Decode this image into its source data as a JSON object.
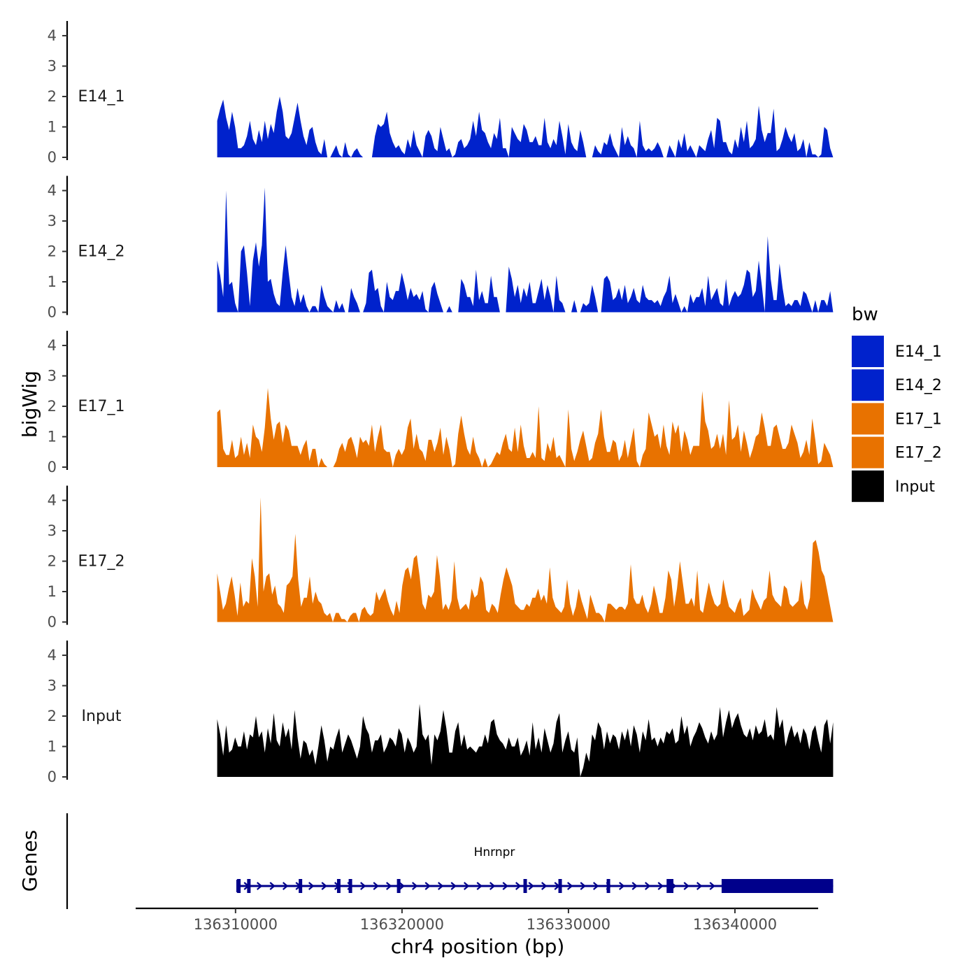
{
  "chart_data": {
    "type": "area",
    "title": "",
    "ylabel": "bigWig",
    "xlabel": "chr4 position (bp)",
    "xlim": [
      136304000,
      136345000
    ],
    "ylim": [
      0,
      4.3
    ],
    "yticks": [
      0,
      1,
      2,
      3,
      4
    ],
    "xticks": [
      136310000,
      136320000,
      136330000,
      136340000
    ],
    "xtick_labels": [
      "136310000",
      "136320000",
      "136330000",
      "136340000"
    ],
    "region_start": 136308900,
    "region_end": 136345900,
    "bin_count": 200,
    "legend_title": "bw",
    "tracks": [
      {
        "name": "E14_1",
        "color": "#0022CC",
        "values": [
          1.2,
          1.6,
          1.9,
          1.3,
          0.9,
          1.5,
          1.0,
          0.3,
          0.3,
          0.4,
          0.7,
          1.2,
          0.6,
          0.4,
          0.9,
          0.5,
          1.2,
          0.6,
          1.1,
          0.8,
          1.5,
          2.0,
          1.5,
          0.7,
          0.6,
          0.8,
          1.3,
          1.8,
          1.2,
          0.7,
          0.4,
          0.9,
          1.0,
          0.5,
          0.2,
          0.1,
          0.6,
          0.0,
          0.0,
          0.2,
          0.4,
          0.1,
          0.0,
          0.5,
          0.1,
          0.0,
          0.2,
          0.3,
          0.1,
          0.0,
          0.0,
          0.0,
          0.0,
          0.7,
          1.1,
          1.0,
          1.1,
          1.5,
          0.8,
          0.5,
          0.3,
          0.4,
          0.2,
          0.1,
          0.6,
          0.3,
          0.9,
          0.4,
          0.2,
          0.0,
          0.7,
          0.9,
          0.7,
          0.3,
          0.2,
          1.0,
          0.6,
          0.2,
          0.3,
          0.0,
          0.1,
          0.5,
          0.6,
          0.3,
          0.4,
          0.6,
          1.2,
          0.7,
          1.5,
          0.9,
          0.8,
          0.5,
          0.3,
          0.8,
          0.6,
          1.3,
          0.3,
          0.3,
          0.0,
          1.0,
          0.8,
          0.6,
          0.5,
          1.1,
          0.9,
          0.5,
          0.5,
          0.7,
          0.4,
          0.4,
          1.3,
          0.5,
          0.3,
          0.6,
          0.4,
          1.2,
          0.7,
          0.1,
          1.1,
          0.5,
          0.3,
          0.2,
          0.9,
          0.5,
          0.0,
          0.0,
          0.0,
          0.4,
          0.2,
          0.1,
          0.5,
          0.4,
          0.8,
          0.4,
          0.2,
          0.0,
          1.0,
          0.4,
          0.7,
          0.4,
          0.3,
          0.0,
          1.2,
          0.4,
          0.2,
          0.3,
          0.2,
          0.3,
          0.5,
          0.3,
          0.0,
          0.0,
          0.4,
          0.2,
          0.0,
          0.6,
          0.3,
          0.8,
          0.2,
          0.4,
          0.2,
          0.0,
          0.4,
          0.3,
          0.2,
          0.6,
          0.9,
          0.3,
          1.3,
          1.2,
          0.5,
          0.5,
          0.2,
          0.1,
          0.6,
          0.3,
          1.0,
          0.5,
          1.2,
          0.3,
          0.4,
          0.6,
          1.7,
          0.9,
          0.5,
          0.8,
          0.8,
          1.6,
          0.2,
          0.3,
          0.6,
          1.0,
          0.7,
          0.5,
          0.8,
          0.2,
          0.3,
          0.6,
          0.0,
          0.5,
          0.1,
          0.1,
          0.0,
          0.1,
          1.0,
          0.9,
          0.3,
          0.0
        ]
      },
      {
        "name": "E14_2",
        "color": "#0022CC",
        "values": [
          1.7,
          1.2,
          0.5,
          4.0,
          0.9,
          1.0,
          0.3,
          0.0,
          2.0,
          2.2,
          1.3,
          0.2,
          1.7,
          2.3,
          1.5,
          2.2,
          4.1,
          1.0,
          1.1,
          0.6,
          0.3,
          0.2,
          1.3,
          2.2,
          1.3,
          0.5,
          0.2,
          0.8,
          0.3,
          0.6,
          0.2,
          0.0,
          0.2,
          0.2,
          0.0,
          0.9,
          0.5,
          0.2,
          0.1,
          0.0,
          0.4,
          0.1,
          0.3,
          0.0,
          0.0,
          0.8,
          0.5,
          0.3,
          0.0,
          0.0,
          0.3,
          1.3,
          1.4,
          0.7,
          0.8,
          0.2,
          0.0,
          1.0,
          0.5,
          0.4,
          0.7,
          0.7,
          1.3,
          0.9,
          0.4,
          0.8,
          0.5,
          0.6,
          0.4,
          0.7,
          0.1,
          0.0,
          0.8,
          1.0,
          0.6,
          0.3,
          0.0,
          0.0,
          0.2,
          0.0,
          0.0,
          0.0,
          1.1,
          0.9,
          0.5,
          0.5,
          0.2,
          1.4,
          0.4,
          0.7,
          0.3,
          0.3,
          1.2,
          0.5,
          0.5,
          0.0,
          0.0,
          0.0,
          1.5,
          1.1,
          0.5,
          0.9,
          0.3,
          0.8,
          0.5,
          1.0,
          0.3,
          0.3,
          0.7,
          1.1,
          0.4,
          0.9,
          0.5,
          0.0,
          1.2,
          0.4,
          0.3,
          0.0,
          0.0,
          0.0,
          0.4,
          0.0,
          0.0,
          0.3,
          0.2,
          0.3,
          0.9,
          0.5,
          0.0,
          0.0,
          1.1,
          1.2,
          1.0,
          0.4,
          0.5,
          0.8,
          0.4,
          0.9,
          0.3,
          0.5,
          0.8,
          0.4,
          0.3,
          0.9,
          0.5,
          0.4,
          0.4,
          0.3,
          0.4,
          0.2,
          0.5,
          0.7,
          1.2,
          0.3,
          0.6,
          0.3,
          0.0,
          0.2,
          0.0,
          0.6,
          0.3,
          0.5,
          0.5,
          0.8,
          0.2,
          1.2,
          0.4,
          0.6,
          0.8,
          0.3,
          0.2,
          1.1,
          0.2,
          0.5,
          0.7,
          0.5,
          0.6,
          0.9,
          1.4,
          1.3,
          0.5,
          0.7,
          1.7,
          0.9,
          0.0,
          2.5,
          1.1,
          0.4,
          0.4,
          1.6,
          0.8,
          0.2,
          0.3,
          0.2,
          0.4,
          0.4,
          0.2,
          0.7,
          0.6,
          0.3,
          0.0,
          0.4,
          0.0,
          0.4,
          0.4,
          0.2,
          0.7,
          0.0
        ]
      },
      {
        "name": "E17_1",
        "color": "#E87200",
        "values": [
          1.8,
          1.9,
          0.6,
          0.4,
          0.4,
          0.9,
          0.3,
          0.4,
          1.0,
          0.4,
          0.8,
          0.3,
          1.4,
          1.0,
          0.9,
          0.5,
          1.3,
          2.6,
          1.6,
          0.9,
          1.4,
          1.5,
          0.8,
          1.4,
          1.2,
          0.7,
          0.7,
          0.7,
          0.4,
          0.7,
          0.9,
          0.2,
          0.6,
          0.6,
          0.0,
          0.3,
          0.1,
          0.0,
          0.0,
          0.0,
          0.2,
          0.6,
          0.8,
          0.5,
          0.9,
          1.0,
          0.7,
          0.3,
          1.0,
          0.8,
          0.9,
          0.7,
          1.4,
          0.5,
          1.0,
          1.4,
          0.6,
          0.5,
          0.5,
          0.0,
          0.4,
          0.6,
          0.4,
          0.6,
          1.3,
          1.6,
          0.6,
          1.1,
          0.6,
          0.5,
          0.2,
          0.9,
          0.9,
          0.5,
          0.8,
          1.3,
          0.4,
          1.0,
          0.6,
          0.0,
          0.1,
          1.1,
          1.7,
          1.1,
          0.6,
          0.4,
          1.0,
          0.5,
          0.3,
          0.0,
          0.3,
          0.0,
          0.1,
          0.3,
          0.5,
          0.4,
          0.8,
          1.1,
          0.6,
          0.5,
          1.3,
          0.5,
          1.4,
          0.7,
          0.3,
          0.3,
          0.5,
          0.3,
          2.0,
          0.3,
          0.2,
          0.8,
          0.5,
          1.0,
          0.3,
          0.4,
          0.2,
          0.0,
          1.9,
          0.6,
          0.2,
          0.5,
          0.9,
          1.2,
          0.7,
          0.2,
          0.3,
          0.8,
          1.1,
          1.9,
          1.0,
          0.5,
          0.5,
          0.9,
          0.8,
          0.2,
          0.4,
          0.9,
          0.3,
          0.8,
          1.3,
          0.2,
          0.0,
          0.4,
          0.6,
          1.8,
          1.4,
          1.0,
          1.1,
          0.6,
          1.4,
          0.7,
          0.4,
          1.5,
          1.1,
          1.4,
          0.5,
          1.2,
          0.9,
          0.4,
          0.7,
          0.7,
          0.7,
          2.5,
          1.5,
          1.2,
          0.6,
          0.7,
          1.1,
          0.6,
          1.1,
          0.4,
          2.2,
          0.9,
          1.0,
          1.4,
          0.5,
          1.2,
          0.8,
          0.3,
          0.6,
          1.0,
          1.1,
          1.8,
          1.3,
          0.7,
          0.7,
          1.3,
          1.4,
          1.0,
          0.6,
          0.6,
          0.8,
          1.4,
          1.1,
          0.8,
          0.3,
          0.5,
          0.9,
          0.4,
          1.6,
          0.9,
          0.1,
          0.2,
          0.8,
          0.6,
          0.4,
          0.0
        ]
      },
      {
        "name": "E17_2",
        "color": "#E87200",
        "values": [
          1.6,
          1.0,
          0.4,
          0.6,
          1.1,
          1.5,
          0.9,
          0.2,
          1.3,
          0.5,
          0.7,
          0.6,
          2.1,
          1.5,
          0.5,
          4.1,
          1.0,
          1.5,
          1.6,
          0.9,
          1.2,
          0.6,
          0.5,
          0.3,
          1.2,
          1.3,
          1.5,
          2.9,
          1.4,
          0.5,
          0.8,
          0.8,
          1.5,
          0.6,
          1.0,
          0.7,
          0.6,
          0.3,
          0.2,
          0.3,
          0.0,
          0.3,
          0.3,
          0.1,
          0.1,
          0.0,
          0.2,
          0.3,
          0.3,
          0.0,
          0.4,
          0.5,
          0.3,
          0.2,
          0.3,
          1.0,
          0.7,
          0.9,
          1.1,
          0.7,
          0.4,
          0.2,
          0.7,
          0.3,
          1.2,
          1.7,
          1.8,
          1.4,
          2.1,
          2.2,
          1.5,
          0.6,
          0.4,
          0.9,
          0.8,
          1.0,
          2.2,
          1.5,
          0.4,
          0.6,
          0.4,
          0.7,
          2.0,
          0.8,
          0.4,
          0.5,
          0.6,
          0.4,
          1.1,
          0.8,
          0.9,
          1.5,
          1.3,
          0.4,
          0.3,
          0.6,
          0.5,
          0.3,
          0.9,
          1.4,
          1.8,
          1.5,
          1.2,
          0.6,
          0.5,
          0.4,
          0.4,
          0.6,
          0.5,
          0.8,
          0.8,
          1.1,
          0.7,
          0.9,
          0.6,
          1.8,
          0.8,
          0.5,
          0.4,
          0.3,
          0.5,
          1.4,
          0.6,
          0.2,
          0.5,
          1.1,
          0.7,
          0.4,
          0.1,
          0.9,
          0.6,
          0.3,
          0.3,
          0.2,
          0.0,
          0.6,
          0.6,
          0.5,
          0.4,
          0.5,
          0.5,
          0.4,
          0.6,
          1.9,
          0.8,
          0.6,
          0.6,
          0.9,
          0.5,
          0.3,
          0.6,
          1.2,
          0.8,
          0.3,
          0.3,
          0.8,
          1.7,
          1.4,
          0.5,
          1.1,
          2.0,
          1.3,
          0.6,
          0.6,
          0.8,
          0.5,
          1.7,
          0.4,
          0.3,
          0.8,
          1.3,
          0.9,
          0.6,
          0.5,
          0.6,
          1.4,
          0.9,
          0.5,
          0.4,
          0.3,
          0.6,
          0.8,
          0.2,
          0.3,
          0.4,
          1.1,
          0.8,
          0.6,
          0.4,
          0.7,
          0.8,
          1.7,
          0.9,
          0.7,
          0.6,
          0.5,
          1.2,
          1.1,
          0.6,
          0.5,
          0.6,
          0.7,
          1.4,
          0.6,
          0.4,
          0.8,
          2.6,
          2.7,
          2.3,
          1.7,
          1.5,
          1.0,
          0.5,
          0.0
        ]
      },
      {
        "name": "Input",
        "color": "#000000",
        "values": [
          1.9,
          1.4,
          0.7,
          1.7,
          0.8,
          0.9,
          1.3,
          1.0,
          1.0,
          1.5,
          0.9,
          1.4,
          1.3,
          2.0,
          1.3,
          1.5,
          0.8,
          1.6,
          1.1,
          2.1,
          1.2,
          1.0,
          1.8,
          1.3,
          1.6,
          0.9,
          2.2,
          1.3,
          0.6,
          1.2,
          1.1,
          0.7,
          0.9,
          0.4,
          1.0,
          1.7,
          1.2,
          0.5,
          1.0,
          0.9,
          1.3,
          1.6,
          0.8,
          1.1,
          1.4,
          1.2,
          0.9,
          0.6,
          1.0,
          2.0,
          1.6,
          1.4,
          0.8,
          1.2,
          1.2,
          1.4,
          0.8,
          1.0,
          1.3,
          1.2,
          1.0,
          1.6,
          1.4,
          0.8,
          1.3,
          1.1,
          0.8,
          1.0,
          2.4,
          1.4,
          1.2,
          1.4,
          0.4,
          1.4,
          1.2,
          1.5,
          2.2,
          1.6,
          0.8,
          0.8,
          1.5,
          1.8,
          1.0,
          1.4,
          0.9,
          1.0,
          0.9,
          0.8,
          1.0,
          1.0,
          1.4,
          1.1,
          1.8,
          1.9,
          1.4,
          1.2,
          1.1,
          0.9,
          1.3,
          1.0,
          1.0,
          1.3,
          0.7,
          0.9,
          1.2,
          0.7,
          1.8,
          0.9,
          1.3,
          0.8,
          1.6,
          1.2,
          0.8,
          1.1,
          1.8,
          2.1,
          0.8,
          1.2,
          1.5,
          0.9,
          0.8,
          1.3,
          0.0,
          0.3,
          0.8,
          0.5,
          1.4,
          1.2,
          1.8,
          1.6,
          0.9,
          1.5,
          1.1,
          1.4,
          1.3,
          0.9,
          1.5,
          1.2,
          1.6,
          1.0,
          1.7,
          1.4,
          0.8,
          1.5,
          1.2,
          1.9,
          1.2,
          1.3,
          1.0,
          1.3,
          1.1,
          1.5,
          1.4,
          1.6,
          1.1,
          1.2,
          2.0,
          1.4,
          1.7,
          1.0,
          1.3,
          1.5,
          1.8,
          1.6,
          1.3,
          1.1,
          1.5,
          1.2,
          1.4,
          2.3,
          1.3,
          1.8,
          2.2,
          1.6,
          1.9,
          2.1,
          1.7,
          1.4,
          1.3,
          1.6,
          1.2,
          1.7,
          1.4,
          1.5,
          1.9,
          1.3,
          1.4,
          1.2,
          2.3,
          1.6,
          1.9,
          1.0,
          1.4,
          1.7,
          1.3,
          1.5,
          1.1,
          1.6,
          1.4,
          0.9,
          1.5,
          1.7,
          1.2,
          0.8,
          1.7,
          1.9,
          1.1,
          1.8
        ]
      }
    ],
    "genes": {
      "track_label": "Genes",
      "gene_name": "Hnrnpr",
      "color": "#00008B",
      "start": 136310100,
      "end": 136345900,
      "thick_start": 136339200,
      "exons": [
        136310200,
        136310800,
        136313900,
        136316200,
        136316900,
        136319800,
        136327400,
        136329500,
        136332400,
        136336000,
        136336200
      ]
    }
  }
}
